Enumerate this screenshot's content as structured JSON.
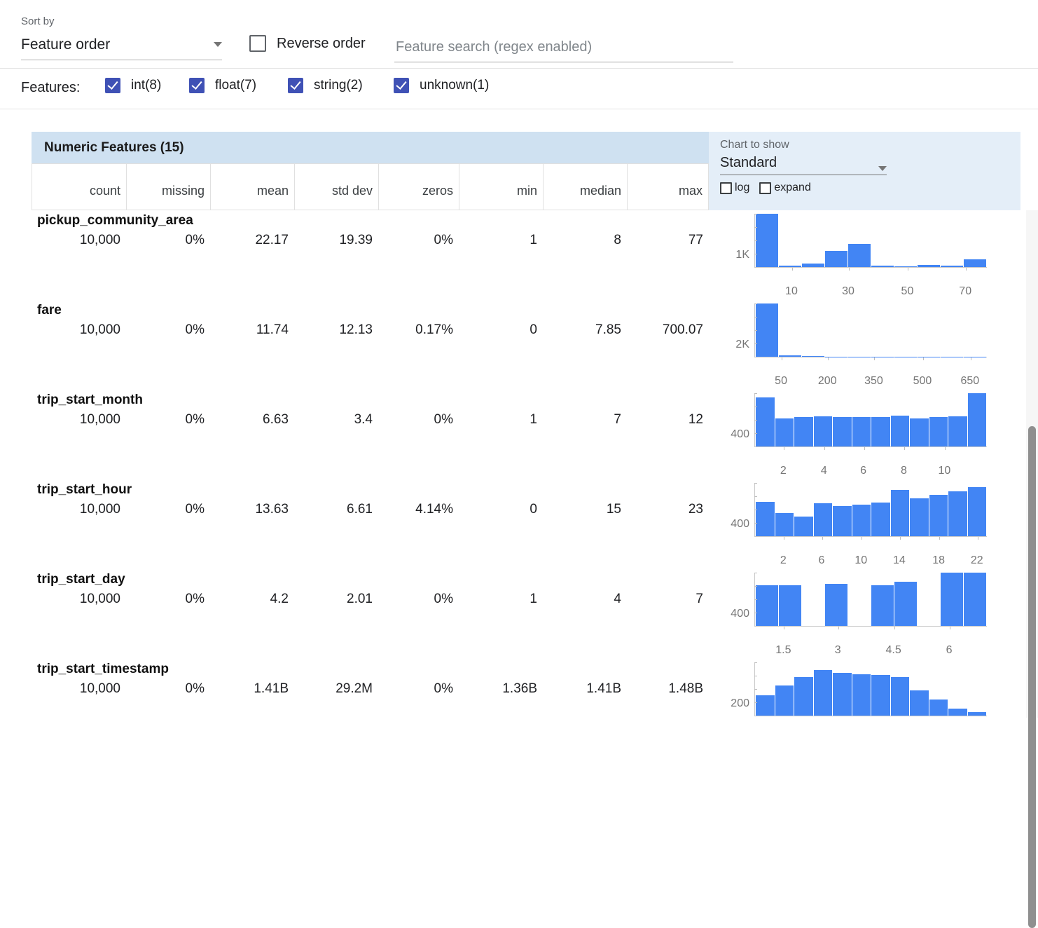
{
  "toolbar": {
    "sort_by_label": "Sort by",
    "sort_by_value": "Feature order",
    "reverse_order_label": "Reverse order",
    "search_placeholder": "Feature search (regex enabled)"
  },
  "filters": {
    "label": "Features:",
    "options": [
      {
        "label": "int(8)",
        "checked": true
      },
      {
        "label": "float(7)",
        "checked": true
      },
      {
        "label": "string(2)",
        "checked": true
      },
      {
        "label": "unknown(1)",
        "checked": true
      }
    ]
  },
  "table": {
    "title": "Numeric Features (15)",
    "columns": [
      "count",
      "missing",
      "mean",
      "std dev",
      "zeros",
      "min",
      "median",
      "max"
    ],
    "chart_controls": {
      "label": "Chart to show",
      "selected": "Standard",
      "log_label": "log",
      "expand_label": "expand"
    }
  },
  "rows": [
    {
      "name": "pickup_community_area",
      "count": "10,000",
      "missing": "0%",
      "mean": "22.17",
      "std_dev": "19.39",
      "zeros": "0%",
      "min": "1",
      "median": "8",
      "max": "77"
    },
    {
      "name": "fare",
      "count": "10,000",
      "missing": "0%",
      "mean": "11.74",
      "std_dev": "12.13",
      "zeros": "0.17%",
      "min": "0",
      "median": "7.85",
      "max": "700.07"
    },
    {
      "name": "trip_start_month",
      "count": "10,000",
      "missing": "0%",
      "mean": "6.63",
      "std_dev": "3.4",
      "zeros": "0%",
      "min": "1",
      "median": "7",
      "max": "12"
    },
    {
      "name": "trip_start_hour",
      "count": "10,000",
      "missing": "0%",
      "mean": "13.63",
      "std_dev": "6.61",
      "zeros": "4.14%",
      "min": "0",
      "median": "15",
      "max": "23"
    },
    {
      "name": "trip_start_day",
      "count": "10,000",
      "missing": "0%",
      "mean": "4.2",
      "std_dev": "2.01",
      "zeros": "0%",
      "min": "1",
      "median": "4",
      "max": "7"
    },
    {
      "name": "trip_start_timestamp",
      "count": "10,000",
      "missing": "0%",
      "mean": "1.41B",
      "std_dev": "29.2M",
      "zeros": "0%",
      "min": "1.36B",
      "median": "1.41B",
      "max": "1.48B"
    }
  ],
  "chart_data": [
    {
      "type": "bar",
      "feature": "pickup_community_area",
      "y_axis_label": "1K",
      "x_ticks": [
        "10",
        "30",
        "50",
        "70"
      ],
      "x_tick_pos": [
        0.16,
        0.405,
        0.66,
        0.91
      ],
      "bars_norm": [
        1.0,
        0.03,
        0.06,
        0.3,
        0.44,
        0.03,
        0.01,
        0.04,
        0.02,
        0.14
      ]
    },
    {
      "type": "bar",
      "feature": "fare",
      "y_axis_label": "2K",
      "x_ticks": [
        "50",
        "200",
        "350",
        "500",
        "650"
      ],
      "x_tick_pos": [
        0.115,
        0.315,
        0.515,
        0.725,
        0.93
      ],
      "bars_norm": [
        1.0,
        0.02,
        0.01,
        0.006,
        0.004,
        0.003,
        0.003,
        0.002,
        0.002,
        0.002
      ]
    },
    {
      "type": "bar",
      "feature": "trip_start_month",
      "y_axis_label": "400",
      "x_ticks": [
        "2",
        "4",
        "6",
        "8",
        "10"
      ],
      "x_tick_pos": [
        0.125,
        0.3,
        0.47,
        0.645,
        0.82
      ],
      "bars_norm": [
        0.92,
        0.52,
        0.55,
        0.56,
        0.55,
        0.55,
        0.55,
        0.58,
        0.52,
        0.55,
        0.57,
        1.0
      ]
    },
    {
      "type": "bar",
      "feature": "trip_start_hour",
      "y_axis_label": "400",
      "x_ticks": [
        "2",
        "6",
        "10",
        "14",
        "18",
        "22"
      ],
      "x_tick_pos": [
        0.125,
        0.29,
        0.46,
        0.625,
        0.795,
        0.96
      ],
      "bars_norm": [
        0.64,
        0.44,
        0.37,
        0.62,
        0.56,
        0.59,
        0.63,
        0.87,
        0.71,
        0.77,
        0.84,
        0.92
      ]
    },
    {
      "type": "bar",
      "feature": "trip_start_day",
      "y_axis_label": "400",
      "x_ticks": [
        "1.5",
        "3",
        "4.5",
        "6"
      ],
      "x_tick_pos": [
        0.125,
        0.36,
        0.6,
        0.84
      ],
      "bars_norm": [
        0.76,
        0.76,
        0,
        0.79,
        0,
        0.76,
        0.83,
        0,
        1.0,
        1.0
      ]
    },
    {
      "type": "bar",
      "feature": "trip_start_timestamp",
      "y_axis_label": "200",
      "x_ticks": [],
      "x_tick_pos": [],
      "bars_norm": [
        0.38,
        0.57,
        0.72,
        0.86,
        0.8,
        0.78,
        0.76,
        0.73,
        0.48,
        0.3,
        0.13,
        0.06
      ]
    }
  ],
  "colors": {
    "accent_indigo": "#3f51b5",
    "bar_blue": "#4285f4",
    "header_blue": "#cfe1f1",
    "panel_blue": "#e4eef8"
  }
}
